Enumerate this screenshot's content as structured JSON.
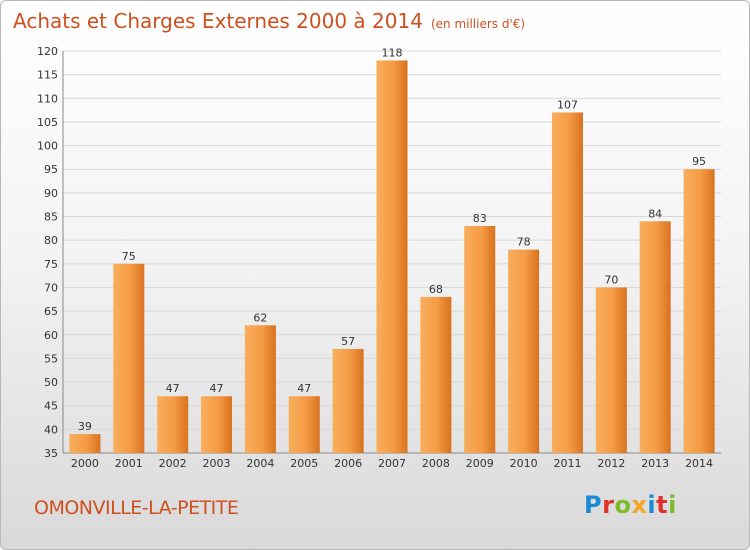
{
  "header": {
    "title": "Achats et Charges Externes 2000 à 2014",
    "unit": "(en milliers d'€)"
  },
  "footer": {
    "commune": "OMONVILLE-LA-PETITE",
    "logo_text": "Proxiti",
    "logo_colors": [
      "#1a8bd6",
      "#e2312a",
      "#7cbb2a",
      "#f5a623",
      "#1a8bd6",
      "#e2312a",
      "#7cbb2a"
    ]
  },
  "chart_data": {
    "type": "bar",
    "title": "Achats et Charges Externes 2000 à 2014",
    "subtitle": "(en milliers d'€)",
    "categories": [
      "2000",
      "2001",
      "2002",
      "2003",
      "2004",
      "2005",
      "2006",
      "2007",
      "2008",
      "2009",
      "2010",
      "2011",
      "2012",
      "2013",
      "2014"
    ],
    "values": [
      39,
      75,
      47,
      47,
      62,
      47,
      57,
      118,
      68,
      83,
      78,
      107,
      70,
      84,
      95
    ],
    "ylim": [
      35,
      120
    ],
    "yticks": [
      35,
      40,
      45,
      50,
      55,
      60,
      65,
      70,
      75,
      80,
      85,
      90,
      95,
      100,
      105,
      110,
      115,
      120
    ],
    "grid": true,
    "bar_color": "#f5a04a",
    "bar_color_dark": "#d9731d"
  }
}
